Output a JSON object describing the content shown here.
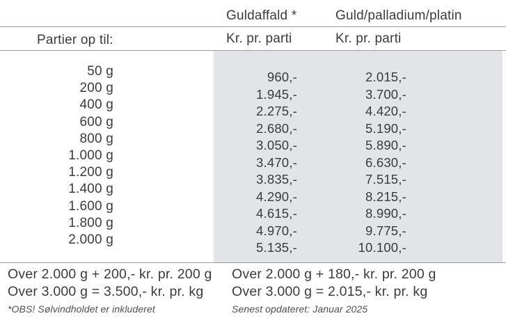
{
  "table": {
    "corner_label": "Partier op til:",
    "columns": [
      {
        "title": "Guldaffald *",
        "subtitle": "Kr. pr. parti"
      },
      {
        "title": "Guld/palladium/platin",
        "subtitle": "Kr. pr. parti"
      }
    ],
    "rows": [
      {
        "weight": "50 g",
        "guldaffald": "960,-",
        "guld_palladium_platin": "2.015,-"
      },
      {
        "weight": "200 g",
        "guldaffald": "1.945,-",
        "guld_palladium_platin": "3.700,-"
      },
      {
        "weight": "400 g",
        "guldaffald": "2.275,-",
        "guld_palladium_platin": "4.420,-"
      },
      {
        "weight": "600 g",
        "guldaffald": "2.680,-",
        "guld_palladium_platin": "5.190,-"
      },
      {
        "weight": "800 g",
        "guldaffald": "3.050,-",
        "guld_palladium_platin": "5.890,-"
      },
      {
        "weight": "1.000 g",
        "guldaffald": "3.470,-",
        "guld_palladium_platin": "6.630,-"
      },
      {
        "weight": "1.200 g",
        "guldaffald": "3.835,-",
        "guld_palladium_platin": "7.515,-"
      },
      {
        "weight": "1.400 g",
        "guldaffald": "4.290,-",
        "guld_palladium_platin": "8.215,-"
      },
      {
        "weight": "1.600 g",
        "guldaffald": "4.615,-",
        "guld_palladium_platin": "8.990,-"
      },
      {
        "weight": "1.800 g",
        "guldaffald": "4.970,-",
        "guld_palladium_platin": "9.775,-"
      },
      {
        "weight": "2.000 g",
        "guldaffald": "5.135,-",
        "guld_palladium_platin": "10.100,-"
      }
    ]
  },
  "footer": {
    "left": {
      "line1": "Over 2.000 g + 200,- kr. pr. 200 g",
      "line2": "Over 3.000 g = 3.500,- kr. pr. kg",
      "note": "*OBS! Sølvindholdet er inkluderet"
    },
    "right": {
      "line1": "Over 2.000 g + 180,- kr. pr. 200 g",
      "line2": "Over 3.000 g = 2.015,- kr. pr. kg",
      "note": "Senest opdateret: Januar 2025"
    }
  },
  "colors": {
    "panel_background": "#e2e4e8",
    "divider_line": "#9b9b9b",
    "text": "#3b3b3b",
    "note_text": "#4f4f4f"
  }
}
